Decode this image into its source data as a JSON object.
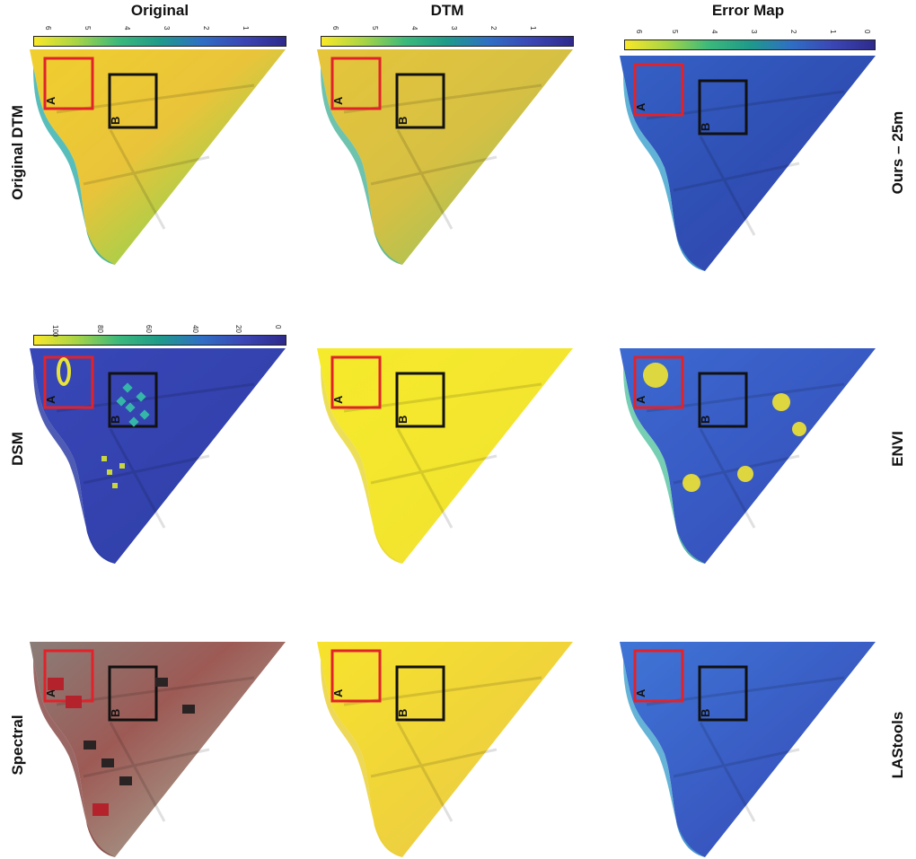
{
  "columns": [
    "Original",
    "DTM",
    "Error Map"
  ],
  "row_labels_left": [
    "Original DTM",
    "DSM",
    "Spectral"
  ],
  "row_labels_right": [
    "Ours – 25m",
    "ENVI",
    "LAStools"
  ],
  "box_labels": {
    "a": "A",
    "b": "B"
  },
  "colorbars": {
    "dtm": [
      "6",
      "5",
      "4",
      "3",
      "2",
      "1"
    ],
    "dsm": [
      "100",
      "80",
      "60",
      "40",
      "20",
      "0"
    ],
    "error": [
      "6",
      "5",
      "4",
      "3",
      "2",
      "1",
      "0"
    ]
  },
  "colors": {
    "box_a": "#e0232b",
    "box_b": "#111111"
  }
}
